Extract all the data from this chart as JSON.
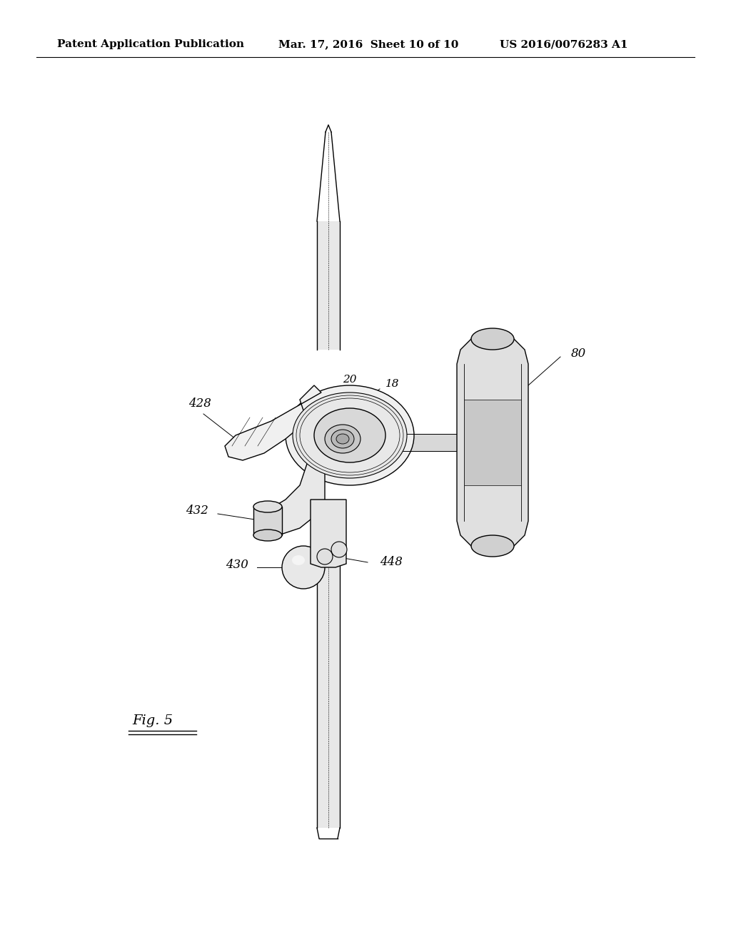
{
  "background_color": "#ffffff",
  "header_left": "Patent Application Publication",
  "header_mid": "Mar. 17, 2016  Sheet 10 of 10",
  "header_right": "US 2016/0076283 A1",
  "fig_label": "Fig. 5",
  "lw": 1.0,
  "label_fs": 12
}
